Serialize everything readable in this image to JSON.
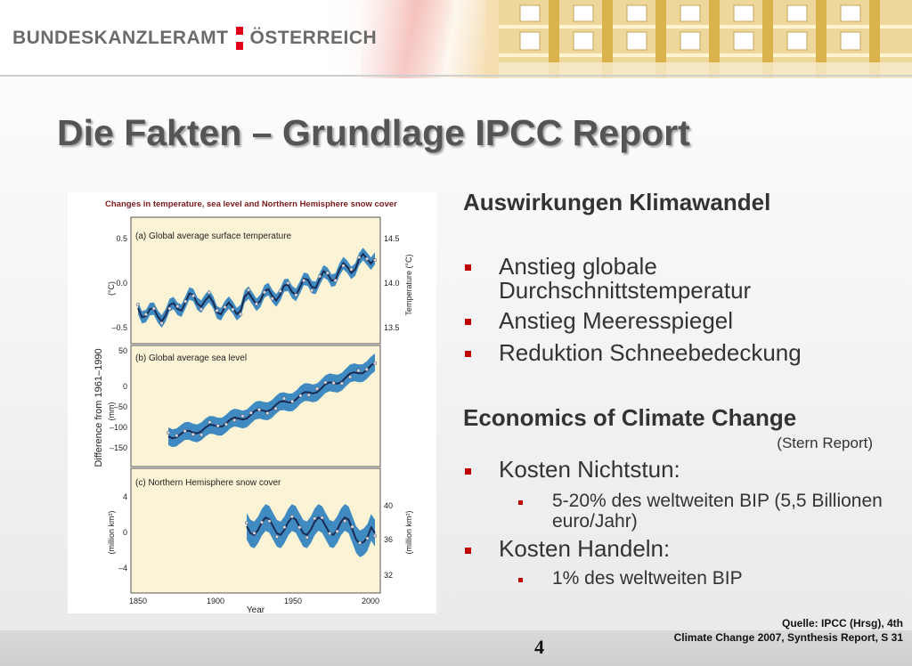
{
  "header": {
    "logo_text": "BUNDESKANZLERAMT",
    "logo_text2": "ÖSTERREICH",
    "logo_colors": [
      "#e2001a",
      "#ffffff",
      "#e2001a"
    ]
  },
  "slide": {
    "title": "Die Fakten – Grundlage IPCC Report"
  },
  "figure": {
    "title": "Changes in temperature, sea level and Northern Hemisphere snow cover",
    "y_group_label": "Difference from 1961–1990",
    "x_label": "Year",
    "x_ticks": [
      "1850",
      "1900",
      "1950",
      "2000"
    ],
    "panels": [
      {
        "label": "(a) Global average surface temperature",
        "left_unit": "(°C)",
        "right_unit": "Temperature (°C)",
        "left_ticks": [
          "0.5",
          "0.0",
          "–0.5"
        ],
        "right_ticks": [
          "14.5",
          "14.0",
          "13.5"
        ]
      },
      {
        "label": "(b) Global average sea level",
        "left_unit": "(mm)",
        "right_unit": "",
        "left_ticks": [
          "50",
          "0",
          "–50",
          "–100",
          "–150"
        ],
        "right_ticks": []
      },
      {
        "label": "(c) Northern Hemisphere snow cover",
        "left_unit": "(million km²)",
        "right_unit": "(million km²)",
        "left_ticks": [
          "4",
          "0",
          "–4"
        ],
        "right_ticks": [
          "40",
          "36",
          "32"
        ]
      }
    ],
    "colors": {
      "panel_bg": "#fbf3d6",
      "band": "#2a7fbf",
      "line": "#1b2a52",
      "title": "#7a1a1a"
    }
  },
  "content": {
    "section1_title": "Auswirkungen Klimawandel",
    "section1_bullets": [
      "Anstieg globale Durchschnittstemperatur",
      "Anstieg Meeresspiegel",
      "Reduktion Schneebedeckung"
    ],
    "section2_title": "Economics of Climate Change",
    "section2_subtitle": "(Stern Report)",
    "bullet_a": "Kosten Nichtstun:",
    "bullet_a_sub": "5-20% des weltweiten BIP (5,5 Billionen euro/Jahr)",
    "bullet_b": "Kosten Handeln:",
    "bullet_b_sub": "1% des weltweiten BIP"
  },
  "footer": {
    "page_number": "4",
    "source_line1": "Quelle: IPCC (Hrsg), 4th",
    "source_line2": "Climate Change 2007, Synthesis Report, S 31"
  },
  "colors": {
    "bullet": "#c00000",
    "title_text": "#555555",
    "footer_bar": "#d4d4d4"
  }
}
